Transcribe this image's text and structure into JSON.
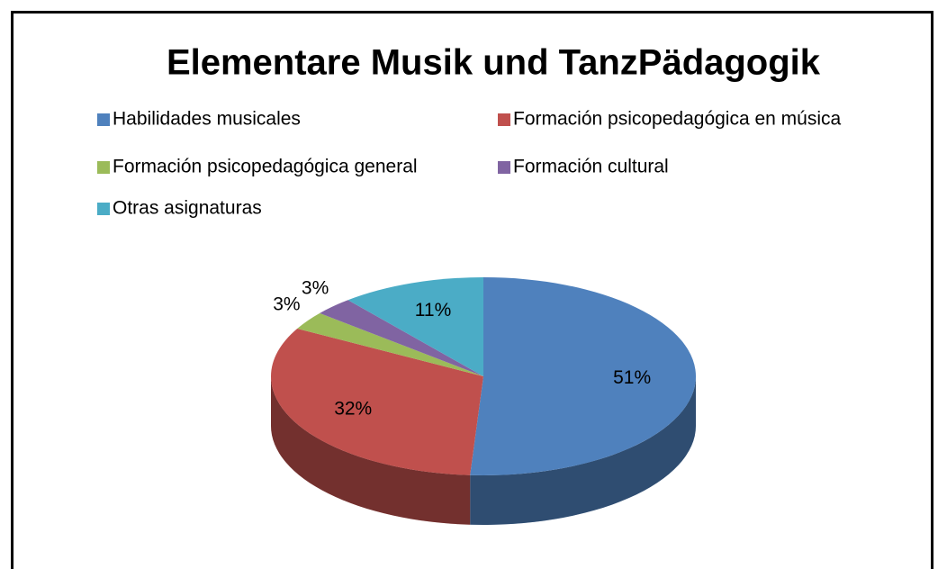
{
  "chart_data": {
    "type": "pie",
    "title": "Elementare Musik und TanzPädagogik",
    "categories": [
      "Habilidades musicales",
      "Formación psicopedagógica en música",
      "Formación psicopedagógica general",
      "Formación cultural",
      "Otras asignaturas"
    ],
    "values": [
      51,
      32,
      3,
      3,
      11
    ],
    "value_labels": [
      "51%",
      "32%",
      "3%",
      "3%",
      "11%"
    ],
    "colors": [
      "#4f81bd",
      "#c0504d",
      "#9bbb59",
      "#8064a2",
      "#4bacc6"
    ],
    "legend": "top"
  }
}
